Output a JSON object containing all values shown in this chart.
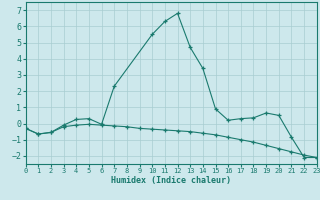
{
  "title": "",
  "xlabel": "Humidex (Indice chaleur)",
  "bg_color": "#cde8ec",
  "line_color": "#1a7a6e",
  "grid_color": "#a8cdd1",
  "xlim": [
    0,
    23
  ],
  "ylim": [
    -2.5,
    7.5
  ],
  "xticks": [
    0,
    1,
    2,
    3,
    4,
    5,
    6,
    7,
    8,
    9,
    10,
    11,
    12,
    13,
    14,
    15,
    16,
    17,
    18,
    19,
    20,
    21,
    22,
    23
  ],
  "yticks": [
    -2,
    -1,
    0,
    1,
    2,
    3,
    4,
    5,
    6,
    7
  ],
  "series1_x": [
    0,
    1,
    2,
    3,
    4,
    5,
    6,
    7,
    10,
    11,
    12,
    13,
    14,
    15,
    16,
    17,
    18,
    19,
    20,
    21,
    22,
    23
  ],
  "series1_y": [
    -0.3,
    -0.65,
    -0.55,
    -0.1,
    0.25,
    0.3,
    -0.05,
    2.3,
    5.5,
    6.3,
    6.8,
    4.7,
    3.4,
    0.9,
    0.2,
    0.3,
    0.35,
    0.65,
    0.5,
    -0.85,
    -2.1,
    -2.1
  ],
  "series2_x": [
    0,
    1,
    2,
    3,
    4,
    5,
    6,
    7,
    8,
    9,
    10,
    11,
    12,
    13,
    14,
    15,
    16,
    17,
    18,
    19,
    20,
    21,
    22,
    23
  ],
  "series2_y": [
    -0.3,
    -0.65,
    -0.55,
    -0.2,
    -0.1,
    -0.05,
    -0.1,
    -0.15,
    -0.2,
    -0.3,
    -0.35,
    -0.4,
    -0.45,
    -0.5,
    -0.6,
    -0.7,
    -0.85,
    -1.0,
    -1.15,
    -1.35,
    -1.55,
    -1.75,
    -1.95,
    -2.1
  ]
}
